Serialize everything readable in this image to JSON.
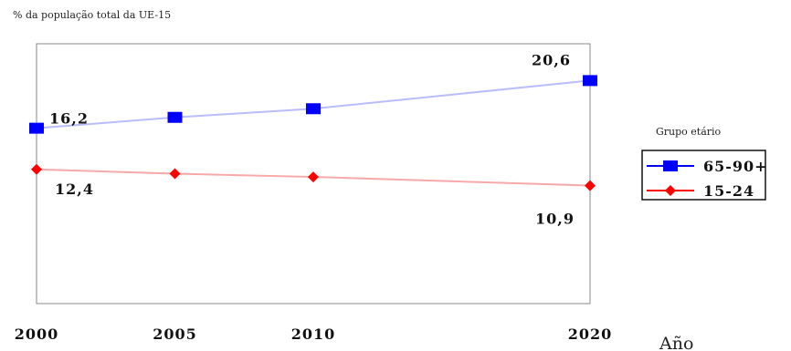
{
  "chart_data": {
    "type": "line",
    "title": "% da população total da UE-15",
    "xlabel": "Año",
    "ylabel": "",
    "x": [
      2000,
      2005,
      2010,
      2020
    ],
    "x_tick_labels": [
      "2000",
      "2005",
      "2010",
      "2020"
    ],
    "ylim": [
      0,
      24
    ],
    "grid": false,
    "legend": {
      "title": "Grupo etário",
      "position": "right"
    },
    "series": [
      {
        "name": "65-90+",
        "values": [
          16.2,
          17.2,
          18.0,
          20.6
        ],
        "color": "#0000ff",
        "line_color": "#b9bdfd",
        "marker": "square"
      },
      {
        "name": "15-24",
        "values": [
          12.4,
          12.0,
          11.7,
          10.9
        ],
        "color": "#ff0000",
        "line_color": "#f7a9a9",
        "marker": "diamond"
      }
    ],
    "data_labels": [
      {
        "series": 0,
        "index": 0,
        "text": "16,2"
      },
      {
        "series": 0,
        "index": 3,
        "text": "20,6"
      },
      {
        "series": 1,
        "index": 0,
        "text": "12,4"
      },
      {
        "series": 1,
        "index": 3,
        "text": "10,9"
      }
    ]
  }
}
